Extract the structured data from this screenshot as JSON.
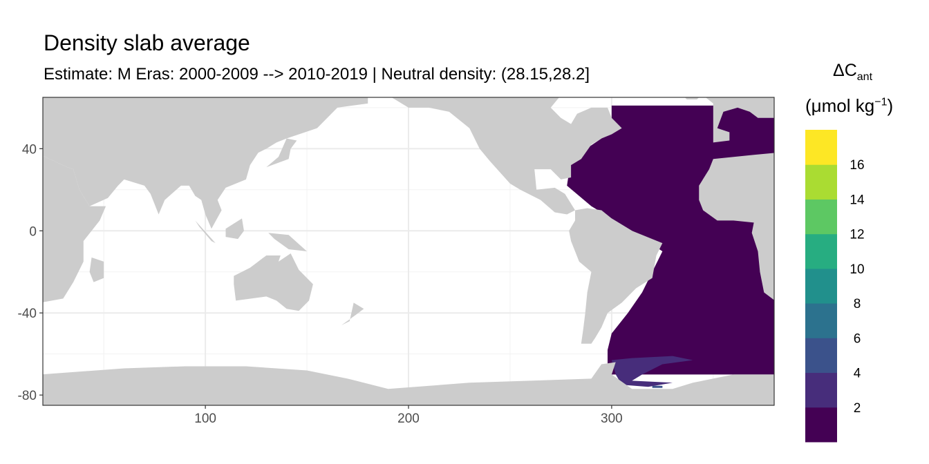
{
  "title": "Density slab average",
  "subtitle": "Estimate: M Eras: 2000-2009 --> 2010-2019 | Neutral density: (28.15,28.2]",
  "chart_data": {
    "type": "heatmap",
    "subtype": "map",
    "title": "Density slab average",
    "subtitle": "Estimate: M Eras: 2000-2009 --> 2010-2019 | Neutral density: (28.15,28.2]",
    "xlabel": "",
    "ylabel": "",
    "xlim": [
      20,
      380
    ],
    "ylim": [
      -85,
      65
    ],
    "x_ticks": [
      "100",
      "200",
      "300"
    ],
    "x_tick_values": [
      100,
      200,
      300
    ],
    "y_ticks": [
      "40",
      "0",
      "-40",
      "-80"
    ],
    "y_tick_values": [
      40,
      0,
      -40,
      -80
    ],
    "grid": true,
    "land_color": "#CCCCCC",
    "legend": {
      "title_main": "ΔC",
      "title_sub": "ant",
      "title_unit_open": "(μmol kg",
      "title_unit_sup": "−1",
      "title_unit_close": ")",
      "placement": "right",
      "breaks": [
        0,
        2,
        4,
        6,
        8,
        10,
        12,
        14,
        16,
        18
      ],
      "labels": [
        "2",
        "4",
        "6",
        "8",
        "10",
        "12",
        "14",
        "16"
      ],
      "colors": [
        "#440154",
        "#472D7B",
        "#3B528B",
        "#2C728E",
        "#21908C",
        "#27AD81",
        "#5DC863",
        "#AADC32",
        "#FDE725"
      ]
    },
    "regions": [
      {
        "area": "Atlantic Ocean (approx. 280–380 E, 60N–70S)",
        "bin": "0-2"
      },
      {
        "area": "Weddell Sea (approx. 300–340 E, 61S–77S)",
        "bin": "2-4"
      },
      {
        "area": "Weddell Sea shelf (approx. 320–325 E, 76S)",
        "bin": "4-6"
      }
    ]
  }
}
